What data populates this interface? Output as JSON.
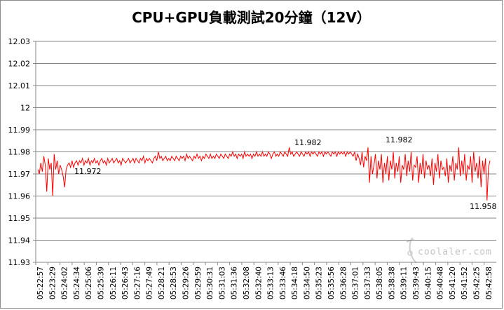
{
  "chart_data": {
    "type": "line",
    "title": "CPU+GPU負載測試20分鐘（12V）",
    "xlabel": "",
    "ylabel": "",
    "ylim": [
      11.93,
      12.03
    ],
    "y_ticks": [
      "11.93",
      "11.94",
      "11.95",
      "11.96",
      "11.97",
      "11.98",
      "11.99",
      "12",
      "12.01",
      "12.02",
      "12.03"
    ],
    "grid": "horizontal",
    "legend": "none",
    "x_tick_labels": [
      "05:22:57",
      "05:23:29",
      "05:24:02",
      "05:24:34",
      "05:25:06",
      "05:25:39",
      "05:26:11",
      "05:26:43",
      "05:27:16",
      "05:27:49",
      "05:28:21",
      "05:28:53",
      "05:29:26",
      "05:29:59",
      "05:30:31",
      "05:31:03",
      "05:31:36",
      "05:32:08",
      "05:32:40",
      "05:33:13",
      "05:33:46",
      "05:34:18",
      "05:34:50",
      "05:35:23",
      "05:35:56",
      "05:36:28",
      "05:37:01",
      "05:37:33",
      "05:38:05",
      "05:38:38",
      "05:39:11",
      "05:39:43",
      "05:40:15",
      "05:40:48",
      "05:41:20",
      "05:41:52",
      "05:42:25",
      "05:42:58"
    ],
    "series_color": "#ff0000",
    "series": [
      {
        "values": [
          11.972,
          11.97,
          11.975,
          11.971,
          11.978,
          11.974,
          11.962,
          11.977,
          11.972,
          11.975,
          11.96,
          11.979,
          11.972,
          11.976,
          11.97,
          11.974,
          11.972,
          11.969,
          11.964,
          11.972,
          11.974,
          11.975,
          11.973,
          11.976,
          11.973,
          11.975,
          11.976,
          11.974,
          11.976,
          11.975,
          11.977,
          11.974,
          11.976,
          11.975,
          11.977,
          11.974,
          11.976,
          11.975,
          11.977,
          11.975,
          11.976,
          11.974,
          11.976,
          11.977,
          11.975,
          11.976,
          11.974,
          11.977,
          11.975,
          11.976,
          11.977,
          11.975,
          11.976,
          11.977,
          11.975,
          11.976,
          11.974,
          11.977,
          11.976,
          11.975,
          11.976,
          11.977,
          11.975,
          11.976,
          11.977,
          11.975,
          11.977,
          11.976,
          11.975,
          11.977,
          11.976,
          11.978,
          11.975,
          11.977,
          11.976,
          11.977,
          11.976,
          11.975,
          11.977,
          11.978,
          11.976,
          11.98,
          11.977,
          11.978,
          11.976,
          11.977,
          11.978,
          11.976,
          11.977,
          11.976,
          11.978,
          11.977,
          11.976,
          11.978,
          11.977,
          11.976,
          11.978,
          11.977,
          11.978,
          11.976,
          11.979,
          11.977,
          11.978,
          11.977,
          11.976,
          11.978,
          11.977,
          11.979,
          11.977,
          11.978,
          11.976,
          11.978,
          11.977,
          11.979,
          11.978,
          11.977,
          11.979,
          11.977,
          11.978,
          11.977,
          11.979,
          11.978,
          11.977,
          11.979,
          11.978,
          11.977,
          11.979,
          11.978,
          11.977,
          11.979,
          11.978,
          11.98,
          11.978,
          11.979,
          11.977,
          11.979,
          11.978,
          11.979,
          11.977,
          11.98,
          11.978,
          11.979,
          11.978,
          11.979,
          11.977,
          11.979,
          11.978,
          11.98,
          11.978,
          11.979,
          11.978,
          11.98,
          11.978,
          11.979,
          11.978,
          11.98,
          11.979,
          11.977,
          11.979,
          11.98,
          11.978,
          11.979,
          11.978,
          11.98,
          11.979,
          11.978,
          11.98,
          11.979,
          11.978,
          11.982,
          11.979,
          11.98,
          11.978,
          11.979,
          11.98,
          11.979,
          11.978,
          11.98,
          11.979,
          11.978,
          11.98,
          11.979,
          11.98,
          11.978,
          11.98,
          11.979,
          11.98,
          11.979,
          11.978,
          11.98,
          11.979,
          11.98,
          11.978,
          11.98,
          11.979,
          11.98,
          11.979,
          11.978,
          11.98,
          11.979,
          11.98,
          11.978,
          11.98,
          11.979,
          11.98,
          11.979,
          11.98,
          11.978,
          11.98,
          11.979,
          11.98,
          11.979,
          11.978,
          11.98,
          11.976,
          11.979,
          11.977,
          11.974,
          11.98,
          11.973,
          11.978,
          11.976,
          11.982,
          11.966,
          11.978,
          11.97,
          11.974,
          11.979,
          11.968,
          11.976,
          11.972,
          11.979,
          11.966,
          11.975,
          11.97,
          11.978,
          11.967,
          11.976,
          11.972,
          11.98,
          11.968,
          11.975,
          11.971,
          11.978,
          11.966,
          11.974,
          11.972,
          11.979,
          11.969,
          11.976,
          11.971,
          11.98,
          11.967,
          11.974,
          11.973,
          11.978,
          11.966,
          11.975,
          11.97,
          11.979,
          11.968,
          11.976,
          11.972,
          11.974,
          11.969,
          11.977,
          11.965,
          11.975,
          11.971,
          11.979,
          11.968,
          11.976,
          11.972,
          11.973,
          11.969,
          11.977,
          11.966,
          11.974,
          11.971,
          11.978,
          11.967,
          11.975,
          11.972,
          11.982,
          11.969,
          11.976,
          11.97,
          11.979,
          11.967,
          11.974,
          11.972,
          11.978,
          11.966,
          11.98,
          11.971,
          11.975,
          11.968,
          11.978,
          11.964,
          11.976,
          11.97,
          11.977,
          11.958,
          11.973,
          11.976
        ]
      }
    ],
    "annotations": [
      {
        "text": "11.972",
        "at": 11.972
      },
      {
        "text": "11.982",
        "at": 11.982
      },
      {
        "text": "11.982",
        "at": 11.982
      },
      {
        "text": "11.958",
        "at": 11.958
      }
    ]
  },
  "watermark": {
    "text": "coolaler.com"
  }
}
